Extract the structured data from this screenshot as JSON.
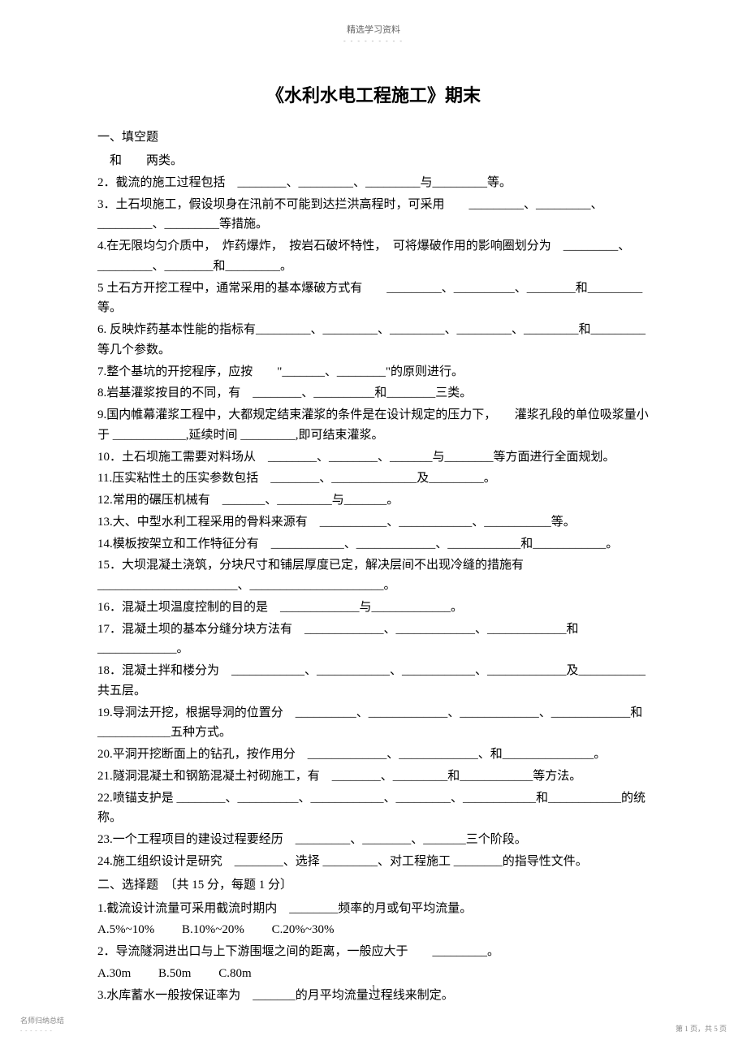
{
  "header": {
    "text": "精选学习资料",
    "dots": "- - - - - - - - -"
  },
  "title": "《水利水电工程施工》期末",
  "section1": {
    "heading": "一、填空题",
    "line1": "　和　　两类。",
    "questions": [
      "2．截流的施工过程包括　________、_________、_________与_________等。",
      "3．土石坝施工，假设坝身在汛前不可能到达拦洪高程时，可采用　　_________、_________、_________、_________等措施。",
      "4.在无限均匀介质中，　炸药爆炸，　按岩石破坏特性，　可将爆破作用的影响圈划分为　_________、_________、________和_________。",
      "5 土石方开挖工程中，通常采用的基本爆破方式有　　_________、__________、________和_________等。",
      "6. 反映炸药基本性能的指标有_________、_________、_________、_________、_________和_________等几个参数。",
      "7.整个基坑的开挖程序，应按　　\"_______、________\"的原则进行。",
      "8.岩基灌浆按目的不同，有　________、__________和________三类。",
      "9.国内帷幕灌浆工程中，大都规定结束灌浆的条件是在设计规定的压力下，　　灌浆孔段的单位吸浆量小于 ____________,延续时间 _________,即可结束灌浆。",
      "10．土石坝施工需要对料场从　________、________、_______与________等方面进行全面规划。",
      "11.压实粘性土的压实参数包括　________、______________及_________。",
      "12.常用的碾压机械有　_______、_________与_______。",
      "13.大、中型水利工程采用的骨料来源有　___________、____________、___________等。",
      "14.模板按架立和工作特征分有　____________、_____________、____________和____________。",
      "15．大坝混凝土浇筑，分块尺寸和铺层厚度已定，解决层间不出现冷缝的措施有_______________________、______________________。",
      "16．混凝土坝温度控制的目的是　_____________与_____________。",
      "",
      "17．混凝土坝的基本分缝分块方法有　_____________、_____________、_____________和_____________。",
      "18．混凝土拌和楼分为　____________、____________、____________、_____________及___________共五层。",
      "19.导洞法开挖，根据导洞的位置分　__________、_____________、_____________、_____________和____________五种方式。",
      "20.平洞开挖断面上的钻孔，按作用分　_____________、_____________、和_______________。",
      "21.隧洞混凝土和钢筋混凝土衬砌施工，有　________、_________和____________等方法。",
      "22.喷锚支护是 ________、__________、____________、_________、____________和____________的统称。",
      "23.一个工程项目的建设过程要经历　_________、________、_______三个阶段。",
      "24.施工组织设计是研究　________、选择 _________、对工程施工 ________的指导性文件。"
    ]
  },
  "section2": {
    "heading": "二、选择题　〔共 15 分，每题 1 分〕",
    "items": [
      {
        "q": "1.截流设计流量可采用截流时期内　________频率的月或旬平均流量。",
        "opts": [
          "A.5%~10%",
          "B.10%~20%",
          "C.20%~30%"
        ]
      },
      {
        "q": "2．导流隧洞进出口与上下游围堰之间的距离，一般应大于　　_________。",
        "opts": [
          "A.30m",
          "B.50m",
          "C.80m"
        ]
      },
      {
        "q": "3.水库蓄水一般按保证率为　_______的月平均流量过程线来制定。",
        "opts": []
      }
    ]
  },
  "pageNumber": "1",
  "footer": {
    "left": "名师归纳总结",
    "leftDots": "- - - - - - -",
    "right": "第 1 页，共 5 页"
  },
  "colors": {
    "text": "#000000",
    "headerText": "#666666",
    "footerText": "#888888",
    "background": "#ffffff"
  },
  "typography": {
    "titleFontSize": 22,
    "bodyFontSize": 15,
    "headerFontSize": 11,
    "footerFontSize": 9,
    "fontFamily": "SimSun"
  }
}
